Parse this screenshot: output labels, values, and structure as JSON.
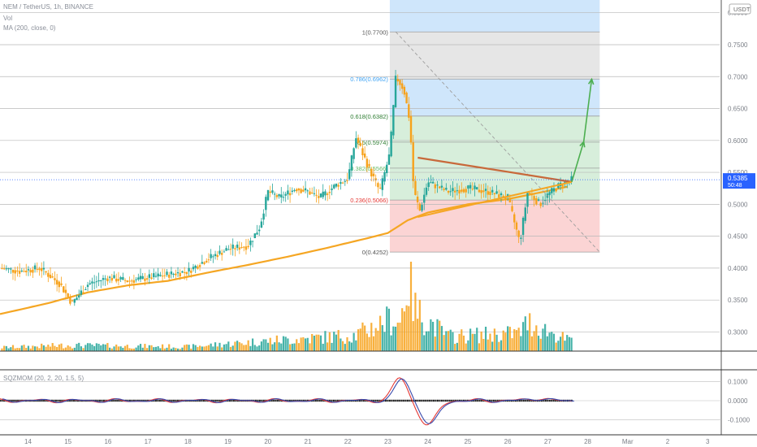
{
  "header": {
    "symbol_line": "NEM / TetherUS, 1h, BINANCE",
    "volume_label": "Vol",
    "ma_label": "MA (200, close, 0)",
    "currency_badge": "USDT"
  },
  "indicator": {
    "label": "SQZMOM (20, 2, 20, 1.5, 5)",
    "ticks": [
      "0.1000",
      "0.0000",
      "-0.1000"
    ],
    "tick_values": [
      0.1,
      0.0,
      -0.1
    ]
  },
  "colors": {
    "up": "#26a69a",
    "down": "#f7a21b",
    "ma": "#f5a623",
    "fib_blue": "#cfe6fb",
    "fib_grey": "#e6e6e6",
    "fib_green": "#d7eedb",
    "fib_red": "#fbd4d4",
    "triangle": "#c8693b",
    "arrow": "#4caf50",
    "price_badge": "#2962ff"
  },
  "chart_data": {
    "type": "candlestick",
    "title": "NEM / TetherUS, 1h, BINANCE",
    "y_ticks": [
      "0.8000",
      "0.7500",
      "0.7000",
      "0.6500",
      "0.6000",
      "0.5500",
      "0.5000",
      "0.4500",
      "0.4000",
      "0.3500",
      "0.3000"
    ],
    "y_tick_values": [
      0.8,
      0.75,
      0.7,
      0.65,
      0.6,
      0.55,
      0.5,
      0.45,
      0.4,
      0.35,
      0.3
    ],
    "ylim": [
      0.27,
      0.82
    ],
    "x_ticks": [
      "14",
      "15",
      "16",
      "17",
      "18",
      "19",
      "20",
      "21",
      "22",
      "23",
      "24",
      "25",
      "26",
      "27",
      "28",
      "Mar",
      "2",
      "3"
    ],
    "x_tick_days": [
      14,
      15,
      16,
      17,
      18,
      19,
      20,
      21,
      22,
      23,
      24,
      25,
      26,
      27,
      28,
      29,
      30,
      31
    ],
    "xlim": [
      13.3,
      31.3
    ],
    "last_price": "0.5385",
    "countdown": "50:48",
    "last_price_value": 0.5385,
    "price_path": [
      [
        13.3,
        0.4
      ],
      [
        13.8,
        0.395
      ],
      [
        14.3,
        0.4
      ],
      [
        14.8,
        0.375
      ],
      [
        15.1,
        0.345
      ],
      [
        15.5,
        0.375
      ],
      [
        16.0,
        0.385
      ],
      [
        16.5,
        0.38
      ],
      [
        17.0,
        0.385
      ],
      [
        17.5,
        0.39
      ],
      [
        18.0,
        0.395
      ],
      [
        18.5,
        0.415
      ],
      [
        19.0,
        0.43
      ],
      [
        19.5,
        0.435
      ],
      [
        19.8,
        0.465
      ],
      [
        20.0,
        0.52
      ],
      [
        20.3,
        0.51
      ],
      [
        20.7,
        0.525
      ],
      [
        21.0,
        0.52
      ],
      [
        21.3,
        0.51
      ],
      [
        21.7,
        0.53
      ],
      [
        22.0,
        0.54
      ],
      [
        22.2,
        0.605
      ],
      [
        22.5,
        0.56
      ],
      [
        22.8,
        0.52
      ],
      [
        23.05,
        0.58
      ],
      [
        23.2,
        0.7
      ],
      [
        23.4,
        0.68
      ],
      [
        23.55,
        0.63
      ],
      [
        23.65,
        0.52
      ],
      [
        23.8,
        0.49
      ],
      [
        24.0,
        0.535
      ],
      [
        24.5,
        0.52
      ],
      [
        25.0,
        0.525
      ],
      [
        25.5,
        0.52
      ],
      [
        26.0,
        0.51
      ],
      [
        26.3,
        0.44
      ],
      [
        26.5,
        0.52
      ],
      [
        26.8,
        0.5
      ],
      [
        27.0,
        0.515
      ],
      [
        27.3,
        0.53
      ],
      [
        27.6,
        0.5385
      ]
    ],
    "ma_path": [
      [
        13.3,
        0.328
      ],
      [
        14.5,
        0.345
      ],
      [
        15.5,
        0.362
      ],
      [
        16.5,
        0.373
      ],
      [
        17.5,
        0.38
      ],
      [
        18.5,
        0.393
      ],
      [
        19.5,
        0.405
      ],
      [
        20.5,
        0.418
      ],
      [
        21.5,
        0.432
      ],
      [
        22.5,
        0.447
      ],
      [
        23.0,
        0.455
      ],
      [
        23.5,
        0.475
      ],
      [
        24.0,
        0.487
      ],
      [
        25.0,
        0.5
      ],
      [
        26.0,
        0.508
      ],
      [
        27.0,
        0.521
      ],
      [
        27.6,
        0.529
      ]
    ],
    "volume_profile": [
      [
        13.3,
        0.05
      ],
      [
        15.0,
        0.08
      ],
      [
        18.0,
        0.06
      ],
      [
        20.0,
        0.14
      ],
      [
        22.2,
        0.22
      ],
      [
        23.1,
        0.45
      ],
      [
        23.3,
        0.38
      ],
      [
        23.5,
        1.0
      ],
      [
        23.7,
        0.55
      ],
      [
        24.5,
        0.2
      ],
      [
        26.3,
        0.25
      ],
      [
        26.5,
        0.4
      ],
      [
        27.5,
        0.15
      ]
    ],
    "fibonacci": {
      "start_day": 23.05,
      "end_day": 28.3,
      "levels": [
        {
          "label": "1(0.7700)",
          "value": 0.77
        },
        {
          "label": "0.786(0.6962)",
          "value": 0.6962
        },
        {
          "label": "0.618(0.6382)",
          "value": 0.6382
        },
        {
          "label": "0.5(0.5974)",
          "value": 0.5974
        },
        {
          "label": "0.382(0.5566)",
          "value": 0.5566
        },
        {
          "label": "0.236(0.5066)",
          "value": 0.5066
        },
        {
          "label": "0(0.4252)",
          "value": 0.4252
        }
      ]
    },
    "triangle": {
      "upper": [
        [
          23.75,
          0.573
        ],
        [
          27.6,
          0.535
        ]
      ],
      "lower": [
        [
          23.75,
          0.48
        ],
        [
          27.6,
          0.535
        ]
      ]
    },
    "projection": [
      [
        27.6,
        0.535
      ],
      [
        27.9,
        0.598
      ],
      [
        28.1,
        0.696
      ]
    ],
    "dashed_trend": [
      [
        23.2,
        0.77
      ],
      [
        28.3,
        0.425
      ]
    ]
  }
}
